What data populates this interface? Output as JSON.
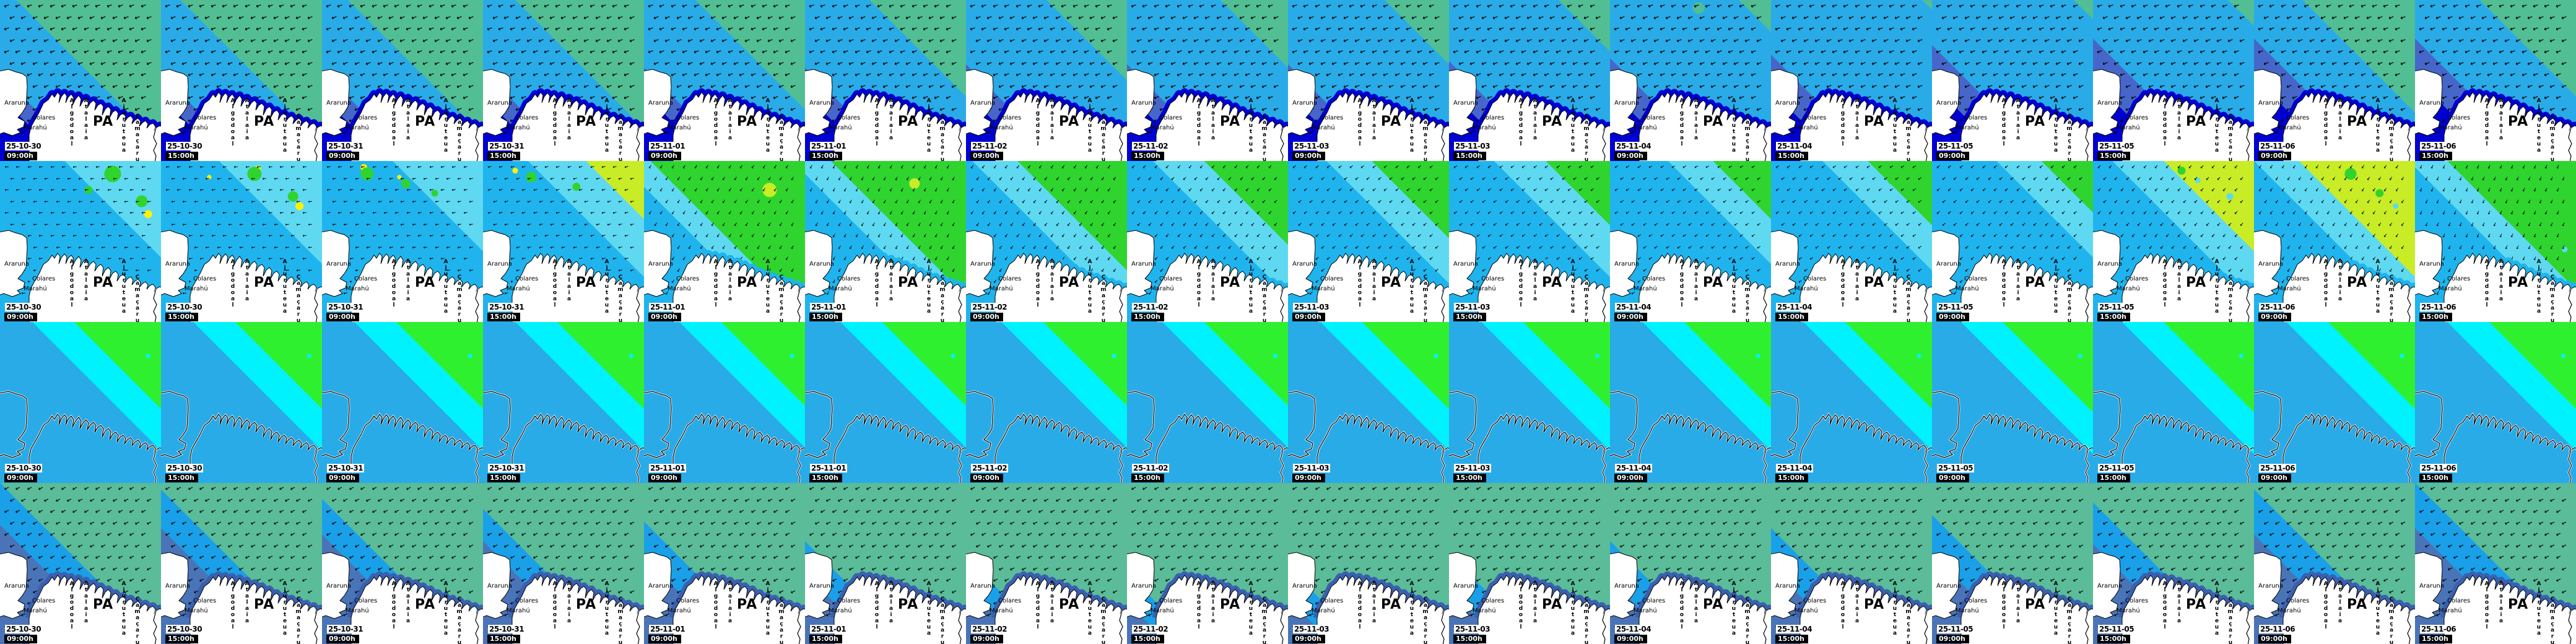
{
  "places": {
    "araruna": "Araruna",
    "colares": "Colares",
    "marahu": "Marahú",
    "algodoal": "Algodoal",
    "atalaia": "Atalaia",
    "ajuruteua": "Ajuruteua",
    "camacaru": "Camaçaru",
    "state": "PA"
  },
  "palette": {
    "seaGreen": "#52BE94",
    "lightBlue": "#29ABE8",
    "slateBlue": "#4667C9",
    "darkBlue": "#0000D2",
    "mainCyan": "#1FB4EE",
    "lightCyan": "#5FD9F2",
    "green2": "#2FD42F",
    "yellow2": "#FFF200",
    "yellowGreen": "#C8EC26",
    "green3": "#2FF02F",
    "cyan3": "#00F2FF",
    "azure3": "#29ABE8",
    "seaGreen4": "#5ABC98",
    "brightBlue4": "#19A0E8",
    "steel4": "#4A74B8",
    "steelDark": "#3A60B0",
    "land": "#FFFFFF",
    "ink": "#000000"
  },
  "rows": [
    {
      "land": "fill",
      "labels": true,
      "coast": "darkBlue",
      "arrow": {
        "char": "↙",
        "size": 11,
        "rot": 24
      },
      "band_colors": [
        "seaGreen",
        "lightBlue",
        "slateBlue",
        "darkBlue"
      ],
      "tiles": [
        {
          "date": "25-10-30",
          "time": "09:00h",
          "bands": [
            45,
            73,
            80
          ]
        },
        {
          "date": "25-10-30",
          "time": "15:00h",
          "bands": [
            44,
            73,
            80
          ]
        },
        {
          "date": "25-10-31",
          "time": "09:00h",
          "bands": [
            42,
            72,
            80
          ]
        },
        {
          "date": "25-10-31",
          "time": "15:00h",
          "bands": [
            40,
            72,
            80
          ]
        },
        {
          "date": "25-11-01",
          "time": "09:00h",
          "bands": [
            34,
            71,
            79
          ]
        },
        {
          "date": "25-11-01",
          "time": "15:00h",
          "bands": [
            30,
            71,
            79
          ]
        },
        {
          "date": "25-11-02",
          "time": "09:00h",
          "bands": [
            25,
            70,
            79
          ]
        },
        {
          "date": "25-11-02",
          "time": "15:00h",
          "bands": [
            21,
            70,
            79
          ]
        },
        {
          "date": "25-11-03",
          "time": "09:00h",
          "bands": [
            20,
            70,
            79
          ]
        },
        {
          "date": "25-11-03",
          "time": "15:00h",
          "bands": [
            16,
            69,
            78
          ]
        },
        {
          "date": "25-11-04",
          "time": "09:00h",
          "bands": [
            10,
            68,
            78
          ],
          "patches": [
            [
              "seaGreen",
              55,
              5,
              10
            ]
          ]
        },
        {
          "date": "25-11-04",
          "time": "15:00h",
          "bands": [
            3,
            67,
            78
          ]
        },
        {
          "date": "25-11-05",
          "time": "09:00h",
          "bands": [
            6,
            64,
            76
          ]
        },
        {
          "date": "25-11-05",
          "time": "15:00h",
          "bands": [
            8,
            62,
            75
          ]
        },
        {
          "date": "25-11-06",
          "time": "09:00h",
          "bands": [
            35,
            62,
            74
          ]
        },
        {
          "date": "25-11-06",
          "time": "15:00h",
          "bands": [
            30,
            62,
            74
          ],
          "patches": [
            [
              "seaGreen",
              80,
              8,
              12
            ]
          ]
        }
      ]
    },
    {
      "land": "fill",
      "labels": true,
      "coast": "mainCyan",
      "arrow": {
        "char": "↙",
        "size": 8,
        "rot": 20
      },
      "band_colors": [
        "lightCyan",
        "mainCyan"
      ],
      "tiles": [
        {
          "date": "25-10-30",
          "time": "09:00h",
          "bands": [
            30
          ],
          "rot": 38,
          "patches": [
            [
              "green2",
              70,
              8,
              14
            ],
            [
              "green2",
              88,
              25,
              10
            ],
            [
              "yellow2",
              72,
              6,
              6
            ],
            [
              "yellow2",
              92,
              33,
              7
            ],
            [
              "green2",
              55,
              18,
              7
            ]
          ]
        },
        {
          "date": "25-10-30",
          "time": "15:00h",
          "bands": [
            32
          ],
          "rot": 38,
          "patches": [
            [
              "green2",
              58,
              8,
              12
            ],
            [
              "green2",
              82,
              22,
              9
            ],
            [
              "yellow2",
              60,
              5,
              6
            ],
            [
              "yellow2",
              86,
              28,
              7
            ],
            [
              "yellow2",
              30,
              10,
              4
            ]
          ]
        },
        {
          "date": "25-10-31",
          "time": "09:00h",
          "bands": [
            28
          ],
          "rot": 34,
          "patches": [
            [
              "green2",
              28,
              8,
              11
            ],
            [
              "green2",
              52,
              14,
              8
            ],
            [
              "yellow2",
              26,
              4,
              6
            ],
            [
              "green2",
              70,
              20,
              6
            ],
            [
              "yellow2",
              48,
              10,
              4
            ]
          ]
        },
        {
          "date": "25-10-31",
          "time": "15:00h",
          "bands": [
            18,
            36
          ],
          "rot": 30,
          "colors": [
            "yellowGreen",
            "lightCyan",
            "mainCyan"
          ],
          "patches": [
            [
              "green2",
              30,
              10,
              9
            ],
            [
              "green2",
              58,
              16,
              7
            ],
            [
              "yellow2",
              20,
              6,
              5
            ]
          ]
        },
        {
          "date": "25-11-01",
          "time": "09:00h",
          "bands": [
            48,
            58
          ],
          "rot": -12,
          "colors": [
            "green2",
            "lightCyan",
            "mainCyan"
          ],
          "patches": [
            [
              "yellowGreen",
              78,
              18,
              12
            ]
          ]
        },
        {
          "date": "25-11-01",
          "time": "15:00h",
          "bands": [
            42,
            54
          ],
          "rot": -16,
          "colors": [
            "green2",
            "lightCyan",
            "mainCyan"
          ],
          "patches": [
            [
              "yellowGreen",
              68,
              14,
              9
            ]
          ]
        },
        {
          "date": "25-11-02",
          "time": "09:00h",
          "bands": [
            34,
            48
          ],
          "rot": -8,
          "colors": [
            "green2",
            "lightCyan",
            "mainCyan"
          ]
        },
        {
          "date": "25-11-02",
          "time": "15:00h",
          "bands": [
            26,
            42
          ],
          "rot": -2,
          "colors": [
            "green2",
            "lightCyan",
            "mainCyan"
          ]
        },
        {
          "date": "25-11-03",
          "time": "09:00h",
          "bands": [
            24,
            38
          ],
          "rot": 6,
          "colors": [
            "green2",
            "lightCyan",
            "mainCyan"
          ],
          "patches": [
            [
              "green2",
              80,
              15,
              8
            ]
          ]
        },
        {
          "date": "25-11-03",
          "time": "15:00h",
          "bands": [
            20,
            36
          ],
          "rot": 10,
          "colors": [
            "green2",
            "lightCyan",
            "mainCyan"
          ]
        },
        {
          "date": "25-11-04",
          "time": "09:00h",
          "bands": [
            18,
            32
          ],
          "rot": 12,
          "colors": [
            "green2",
            "lightCyan",
            "mainCyan"
          ]
        },
        {
          "date": "25-11-04",
          "time": "15:00h",
          "bands": [
            20,
            34
          ],
          "rot": 10,
          "colors": [
            "green2",
            "lightCyan",
            "mainCyan"
          ],
          "patches": [
            [
              "green2",
              75,
              12,
              7
            ]
          ]
        },
        {
          "date": "25-11-05",
          "time": "09:00h",
          "bands": [
            16,
            30
          ],
          "rot": 4,
          "colors": [
            "green2",
            "lightCyan",
            "mainCyan"
          ]
        },
        {
          "date": "25-11-05",
          "time": "15:00h",
          "bands": [
            28,
            44
          ],
          "rot": -2,
          "colors": [
            "yellowGreen",
            "lightCyan",
            "mainCyan"
          ],
          "patches": [
            [
              "lightCyan",
              85,
              22,
              6
            ],
            [
              "green2",
              55,
              6,
              7
            ],
            [
              "lightCyan",
              65,
              12,
              5
            ]
          ]
        },
        {
          "date": "25-11-06",
          "time": "09:00h",
          "bands": [
            36,
            50
          ],
          "rot": -10,
          "colors": [
            "yellowGreen",
            "lightCyan",
            "mainCyan"
          ],
          "patches": [
            [
              "green2",
              60,
              8,
              10
            ],
            [
              "green2",
              78,
              20,
              7
            ],
            [
              "lightCyan",
              88,
              28,
              5
            ]
          ]
        },
        {
          "date": "25-11-06",
          "time": "15:00h",
          "bands": [
            40,
            52
          ],
          "rot": -22,
          "colors": [
            "green2",
            "lightCyan",
            "mainCyan"
          ],
          "patches": [
            [
              "lightCyan",
              93,
              55,
              5
            ]
          ]
        }
      ]
    },
    {
      "land": "outline",
      "labels": false,
      "coast": null,
      "arrow": null,
      "band_colors": [
        "green3",
        "cyan3",
        "azure3"
      ],
      "tiles": [
        {
          "date": "25-10-30",
          "time": "09:00h",
          "bands": [
            27,
            40
          ],
          "patches": [
            [
              "cyan3",
              92,
              21,
              4
            ]
          ]
        },
        {
          "date": "25-10-30",
          "time": "15:00h",
          "bands": [
            27,
            40
          ],
          "patches": [
            [
              "cyan3",
              92,
              21,
              4
            ]
          ]
        },
        {
          "date": "25-10-31",
          "time": "09:00h",
          "bands": [
            27,
            40
          ],
          "patches": [
            [
              "cyan3",
              92,
              21,
              4
            ]
          ]
        },
        {
          "date": "25-10-31",
          "time": "15:00h",
          "bands": [
            27,
            40
          ],
          "patches": [
            [
              "cyan3",
              92,
              21,
              4
            ]
          ]
        },
        {
          "date": "25-11-01",
          "time": "09:00h",
          "bands": [
            26,
            39
          ],
          "patches": [
            [
              "cyan3",
              92,
              21,
              4
            ]
          ]
        },
        {
          "date": "25-11-01",
          "time": "15:00h",
          "bands": [
            26,
            39
          ],
          "patches": [
            [
              "cyan3",
              92,
              21,
              4
            ]
          ]
        },
        {
          "date": "25-11-02",
          "time": "09:00h",
          "bands": [
            26,
            39
          ],
          "patches": [
            [
              "cyan3",
              92,
              21,
              4
            ]
          ]
        },
        {
          "date": "25-11-02",
          "time": "15:00h",
          "bands": [
            26,
            39
          ],
          "patches": [
            [
              "cyan3",
              92,
              21,
              4
            ]
          ]
        },
        {
          "date": "25-11-03",
          "time": "09:00h",
          "bands": [
            27,
            40
          ],
          "patches": [
            [
              "cyan3",
              92,
              21,
              4
            ]
          ]
        },
        {
          "date": "25-11-03",
          "time": "15:00h",
          "bands": [
            27,
            40
          ],
          "patches": [
            [
              "cyan3",
              92,
              21,
              4
            ]
          ]
        },
        {
          "date": "25-11-04",
          "time": "09:00h",
          "bands": [
            27,
            40
          ],
          "patches": [
            [
              "cyan3",
              92,
              21,
              4
            ]
          ]
        },
        {
          "date": "25-11-04",
          "time": "15:00h",
          "bands": [
            27,
            40
          ],
          "patches": [
            [
              "cyan3",
              92,
              21,
              4
            ]
          ]
        },
        {
          "date": "25-11-05",
          "time": "09:00h",
          "bands": [
            28,
            41
          ],
          "patches": [
            [
              "cyan3",
              92,
              21,
              4
            ]
          ]
        },
        {
          "date": "25-11-05",
          "time": "15:00h",
          "bands": [
            28,
            41
          ],
          "patches": [
            [
              "cyan3",
              92,
              21,
              4
            ]
          ]
        },
        {
          "date": "25-11-06",
          "time": "09:00h",
          "bands": [
            27,
            40
          ],
          "patches": [
            [
              "cyan3",
              92,
              21,
              4
            ]
          ]
        },
        {
          "date": "25-11-06",
          "time": "15:00h",
          "bands": [
            27,
            40
          ],
          "patches": [
            [
              "cyan3",
              92,
              21,
              4
            ]
          ]
        }
      ]
    },
    {
      "land": "fill",
      "labels": true,
      "coast": "steelDark",
      "arrow": {
        "char": "↙",
        "size": 10,
        "rot": 18
      },
      "band_colors": [
        "seaGreen4",
        "brightBlue4",
        "steel4"
      ],
      "tiles": [
        {
          "date": "25-10-30",
          "time": "09:00h",
          "bands": [
            50,
            63
          ]
        },
        {
          "date": "25-10-30",
          "time": "15:00h",
          "bands": [
            52,
            64
          ]
        },
        {
          "date": "25-10-31",
          "time": "09:00h",
          "bands": [
            55,
            66
          ]
        },
        {
          "date": "25-10-31",
          "time": "15:00h",
          "bands": [
            58,
            68
          ]
        },
        {
          "date": "25-11-01",
          "time": "09:00h",
          "bands": [
            62,
            73
          ]
        },
        {
          "date": "25-11-01",
          "time": "15:00h",
          "bands": [
            68,
            78
          ]
        },
        {
          "date": "25-11-02",
          "time": "09:00h",
          "bands": [
            73,
            82
          ]
        },
        {
          "date": "25-11-02",
          "time": "15:00h",
          "bands": [
            78,
            87
          ]
        },
        {
          "date": "25-11-03",
          "time": "09:00h",
          "bands": [
            76,
            86
          ]
        },
        {
          "date": "25-11-03",
          "time": "15:00h",
          "bands": [
            72,
            83
          ]
        },
        {
          "date": "25-11-04",
          "time": "09:00h",
          "bands": [
            68,
            80
          ]
        },
        {
          "date": "25-11-04",
          "time": "15:00h",
          "bands": [
            64,
            76
          ]
        },
        {
          "date": "25-11-05",
          "time": "09:00h",
          "bands": [
            60,
            72
          ]
        },
        {
          "date": "25-11-05",
          "time": "15:00h",
          "bands": [
            56,
            69
          ]
        },
        {
          "date": "25-11-06",
          "time": "09:00h",
          "bands": [
            52,
            66
          ]
        },
        {
          "date": "25-11-06",
          "time": "15:00h",
          "bands": [
            50,
            64
          ]
        }
      ]
    }
  ]
}
